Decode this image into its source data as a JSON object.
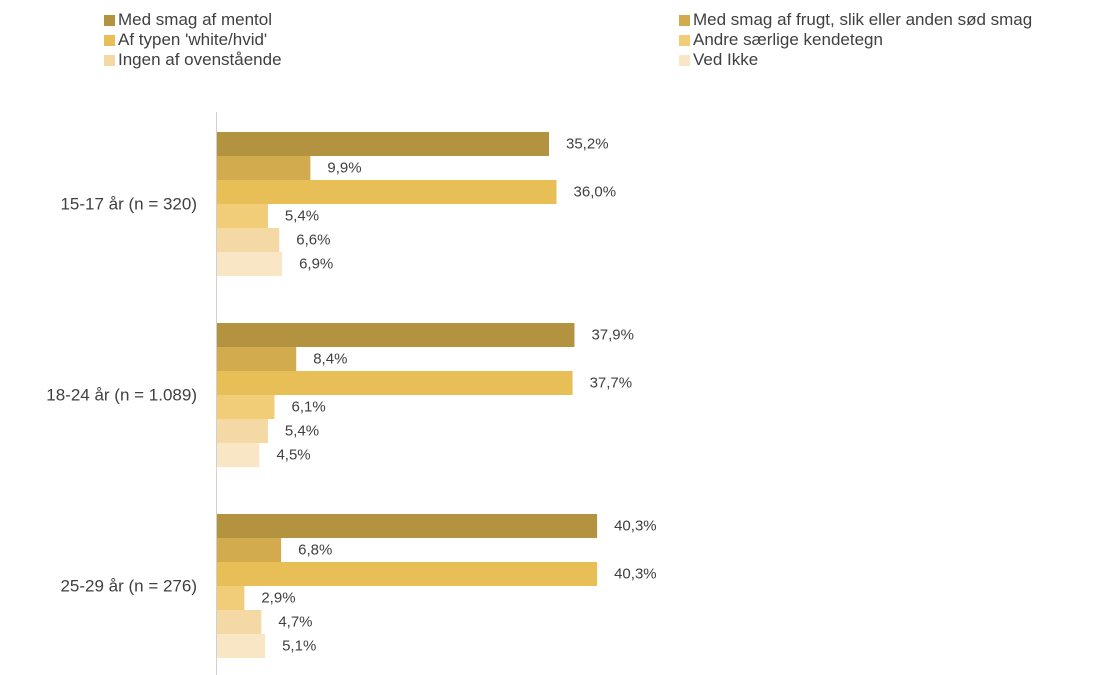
{
  "chart_data": {
    "type": "bar",
    "orientation": "horizontal",
    "title": "",
    "xlabel": "",
    "ylabel": "",
    "xlim": [
      0,
      45
    ],
    "grid": false,
    "legend_position": "top",
    "categories": [
      "15-17 år (n = 320)",
      "18-24 år (n = 1.089)",
      "25-29 år (n = 276)"
    ],
    "series": [
      {
        "name": "Med smag af mentol",
        "color": "#b49340",
        "values": [
          35.2,
          37.9,
          40.3
        ],
        "labels": [
          "35,2%",
          "37,9%",
          "40,3%"
        ]
      },
      {
        "name": "Med smag af frugt, slik eller anden sød smag",
        "color": "#d2ab4f",
        "values": [
          9.9,
          8.4,
          6.8
        ],
        "labels": [
          "9,9%",
          "8,4%",
          "6,8%"
        ]
      },
      {
        "name": "Af typen 'white/hvid'",
        "color": "#e8bf57",
        "values": [
          36.0,
          37.7,
          40.3
        ],
        "labels": [
          "36,0%",
          "37,7%",
          "40,3%"
        ]
      },
      {
        "name": "Andre særlige kendetegn",
        "color": "#f2cd78",
        "values": [
          5.4,
          6.1,
          2.9
        ],
        "labels": [
          "5,4%",
          "6,1%",
          "2,9%"
        ]
      },
      {
        "name": "Ingen af ovenstående",
        "color": "#f5d9a5",
        "values": [
          6.6,
          5.4,
          4.7
        ],
        "labels": [
          "6,6%",
          "5,4%",
          "4,7%"
        ]
      },
      {
        "name": "Ved Ikke",
        "color": "#f8e6c5",
        "values": [
          6.9,
          4.5,
          5.1
        ],
        "labels": [
          "6,9%",
          "4,5%",
          "5,1%"
        ]
      }
    ]
  }
}
